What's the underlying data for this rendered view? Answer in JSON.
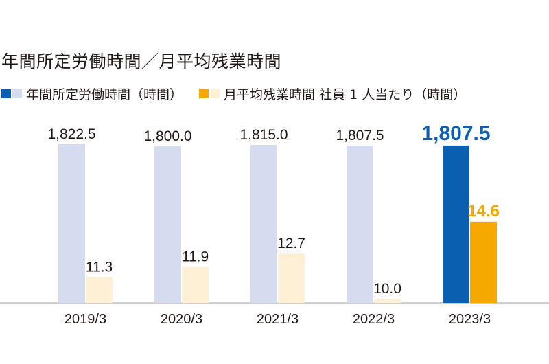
{
  "title": "年間所定労働時間／月平均残業時間",
  "legend": [
    {
      "label": "年間所定労働時間（時間）",
      "colors": [
        "#0b5fb0",
        "#d5dcf0"
      ]
    },
    {
      "label": "月平均残業時間 社員 1 人当たり（時間）",
      "colors": [
        "#f5a800",
        "#fdf0d5"
      ]
    }
  ],
  "chart_data": {
    "type": "bar",
    "categories": [
      "2019/3",
      "2020/3",
      "2021/3",
      "2022/3",
      "2023/3"
    ],
    "series": [
      {
        "name": "年間所定労働時間（時間）",
        "values": [
          1822.5,
          1800.0,
          1815.0,
          1807.5,
          1807.5
        ],
        "labels": [
          "1,822.5",
          "1,800.0",
          "1,815.0",
          "1,807.5",
          "1,807.5"
        ],
        "color_past": "#d5dcf0",
        "color_latest": "#0b5fb0"
      },
      {
        "name": "月平均残業時間 社員 1 人当たり（時間）",
        "values": [
          11.3,
          11.9,
          12.7,
          10.0,
          14.6
        ],
        "labels": [
          "11.3",
          "11.9",
          "12.7",
          "10.0",
          "14.6"
        ],
        "color_past": "#fdf0d5",
        "color_latest": "#f5a800"
      }
    ],
    "latest_label_colors": [
      "#0b5fb0",
      "#f5a800"
    ],
    "grid": false
  }
}
